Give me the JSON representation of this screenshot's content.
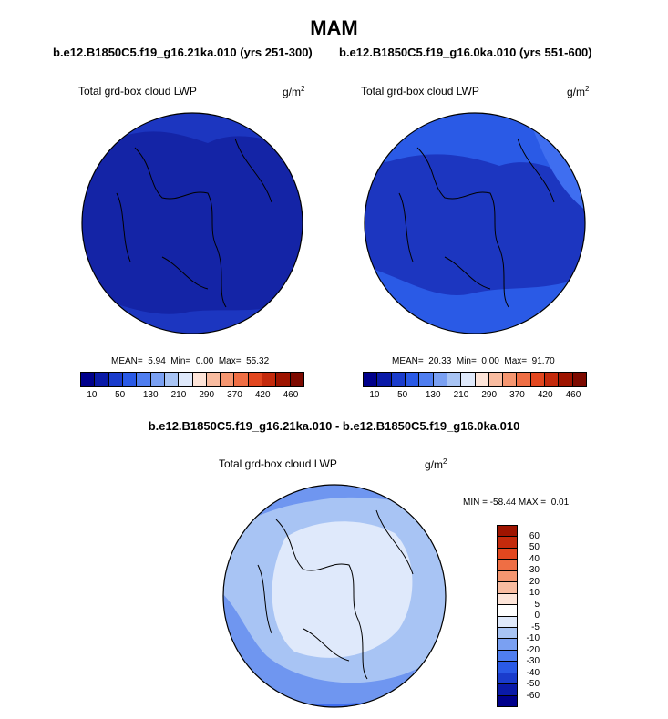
{
  "title": "MAM",
  "cases": {
    "left": "b.e12.B1850C5.f19_g16.21ka.010 (yrs 251-300)",
    "right": "b.e12.B1850C5.f19_g16.0ka.010 (yrs 551-600)"
  },
  "variable_label": "Total grd-box cloud LWP",
  "units": {
    "base": "g/m",
    "exp": "2"
  },
  "panels": [
    {
      "stats": "MEAN=  5.94  Min=  0.00  Max=  55.32"
    },
    {
      "stats": "MEAN=  20.33  Min=  0.00  Max=  91.70"
    }
  ],
  "abs_colorbar": {
    "colors": [
      "#00008b",
      "#0a1aa8",
      "#1a3ccc",
      "#2a5ae6",
      "#4f7ef0",
      "#7aa0f2",
      "#a8c4f4",
      "#dfe9fb",
      "#fde4d8",
      "#f9bca0",
      "#f59670",
      "#ef6e44",
      "#e2471f",
      "#c42a0c",
      "#9e1400",
      "#7d0a00"
    ],
    "labels": [
      "10",
      "50",
      "130",
      "210",
      "290",
      "370",
      "420",
      "460"
    ]
  },
  "diff_title": "b.e12.B1850C5.f19_g16.21ka.010 - b.e12.B1850C5.f19_g16.0ka.010",
  "diff_stats": "MIN = -58.44 MAX =  0.01",
  "diff_colorbar": {
    "colors": [
      "#9e1400",
      "#c42a0c",
      "#e2471f",
      "#ef6e44",
      "#f59670",
      "#f9bca0",
      "#fde4d8",
      "#ffffff",
      "#dfe9fb",
      "#a8c4f4",
      "#7aa0f2",
      "#4f7ef0",
      "#2a5ae6",
      "#1a3ccc",
      "#0a1aa8",
      "#00008b"
    ],
    "labels": [
      "60",
      "50",
      "40",
      "30",
      "20",
      "10",
      "5",
      "0",
      "-5",
      "-10",
      "-20",
      "-30",
      "-40",
      "-50",
      "-60"
    ]
  },
  "map_colors": {
    "left_fill": "#1424a6",
    "left_band": "#1c36c0",
    "right_fill": "#1c36c0",
    "right_band": "#2a5ae6",
    "right_outer": "#3f6ef0",
    "diff_fill": "#dfe9fb",
    "diff_band": "#a8c4f4",
    "diff_outer": "#6f96f0",
    "diff_deep": "#3f6ef0"
  }
}
